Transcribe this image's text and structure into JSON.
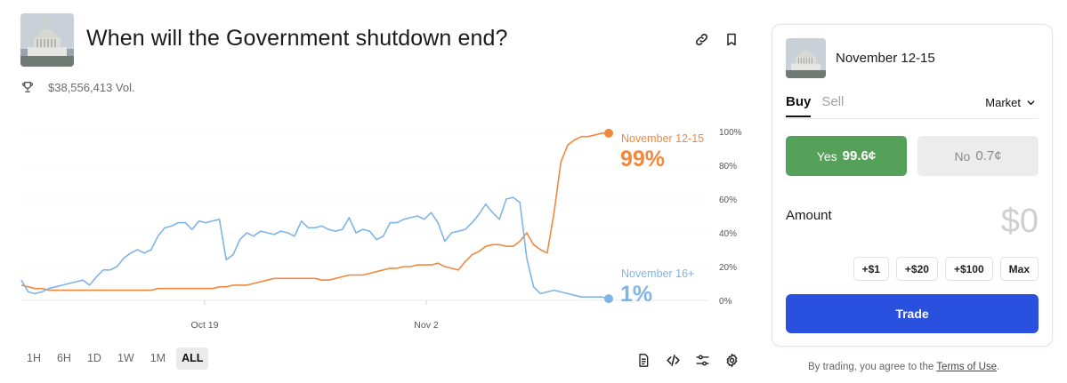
{
  "market": {
    "title": "When will the Government shutdown end?",
    "volume": "$38,556,413 Vol.",
    "icon": "capitol-building-icon"
  },
  "header_actions": [
    {
      "name": "link-icon"
    },
    {
      "name": "bookmark-icon"
    }
  ],
  "chart_data": {
    "type": "line",
    "x_tick_labels": [
      "Oct 19",
      "Nov 2"
    ],
    "y_tick_labels": [
      "100%",
      "80%",
      "60%",
      "40%",
      "20%",
      "0%"
    ],
    "ylim": [
      0,
      100
    ],
    "grid": true,
    "legend": "inline-right",
    "series": [
      {
        "name": "November 12-15",
        "current_label": "99%",
        "color": "#f0883e",
        "values": [
          9,
          8,
          7,
          7,
          6,
          6,
          6,
          6,
          6,
          6,
          6,
          6,
          6,
          6,
          6,
          6,
          6,
          6,
          6,
          6,
          7,
          7,
          7,
          7,
          7,
          7,
          7,
          7,
          7,
          8,
          8,
          9,
          9,
          9,
          10,
          11,
          12,
          13,
          13,
          13,
          13,
          13,
          13,
          13,
          12,
          12,
          13,
          14,
          15,
          15,
          15,
          16,
          17,
          18,
          19,
          19,
          20,
          20,
          21,
          21,
          21,
          22,
          20,
          19,
          18,
          23,
          27,
          29,
          32,
          33,
          33,
          32,
          32,
          35,
          40,
          33,
          30,
          28,
          52,
          82,
          92,
          95,
          97,
          97,
          98,
          99,
          99
        ]
      },
      {
        "name": "November 16+",
        "current_label": "1%",
        "color": "#7fb4e6",
        "values": [
          12,
          5,
          4,
          5,
          7,
          8,
          9,
          10,
          11,
          12,
          9,
          14,
          18,
          18,
          20,
          25,
          28,
          30,
          28,
          30,
          38,
          43,
          44,
          46,
          46,
          42,
          47,
          46,
          47,
          48,
          24,
          27,
          36,
          40,
          38,
          41,
          40,
          39,
          41,
          40,
          38,
          47,
          43,
          43,
          44,
          42,
          41,
          42,
          49,
          40,
          42,
          41,
          36,
          38,
          46,
          46,
          48,
          49,
          50,
          48,
          52,
          46,
          35,
          40,
          41,
          42,
          46,
          51,
          57,
          52,
          48,
          60,
          61,
          58,
          25,
          8,
          4,
          5,
          6,
          5,
          4,
          3,
          2,
          2,
          2,
          2,
          1
        ]
      }
    ]
  },
  "range_tabs": [
    "1H",
    "6H",
    "1D",
    "1W",
    "1M",
    "ALL"
  ],
  "range_active": "ALL",
  "chart_tools": [
    {
      "name": "document-icon"
    },
    {
      "name": "code-embed-icon"
    },
    {
      "name": "sliders-icon"
    },
    {
      "name": "gear-icon"
    }
  ],
  "trade_panel": {
    "outcome_title": "November 12-15",
    "tabs": {
      "buy": "Buy",
      "sell": "Sell"
    },
    "order_type": "Market",
    "yes": {
      "label": "Yes",
      "price": "99.6¢"
    },
    "no": {
      "label": "No",
      "price": "0.7¢"
    },
    "amount_label": "Amount",
    "amount_value": "$0",
    "quick_amounts": [
      "+$1",
      "+$20",
      "+$100",
      "Max"
    ],
    "trade_label": "Trade",
    "colors": {
      "yes": "#55a15a",
      "trade": "#2a50e0"
    }
  },
  "footer": {
    "terms_prefix": "By trading, you agree to the",
    "terms_link": "Terms of Use",
    "terms_suffix": "."
  }
}
